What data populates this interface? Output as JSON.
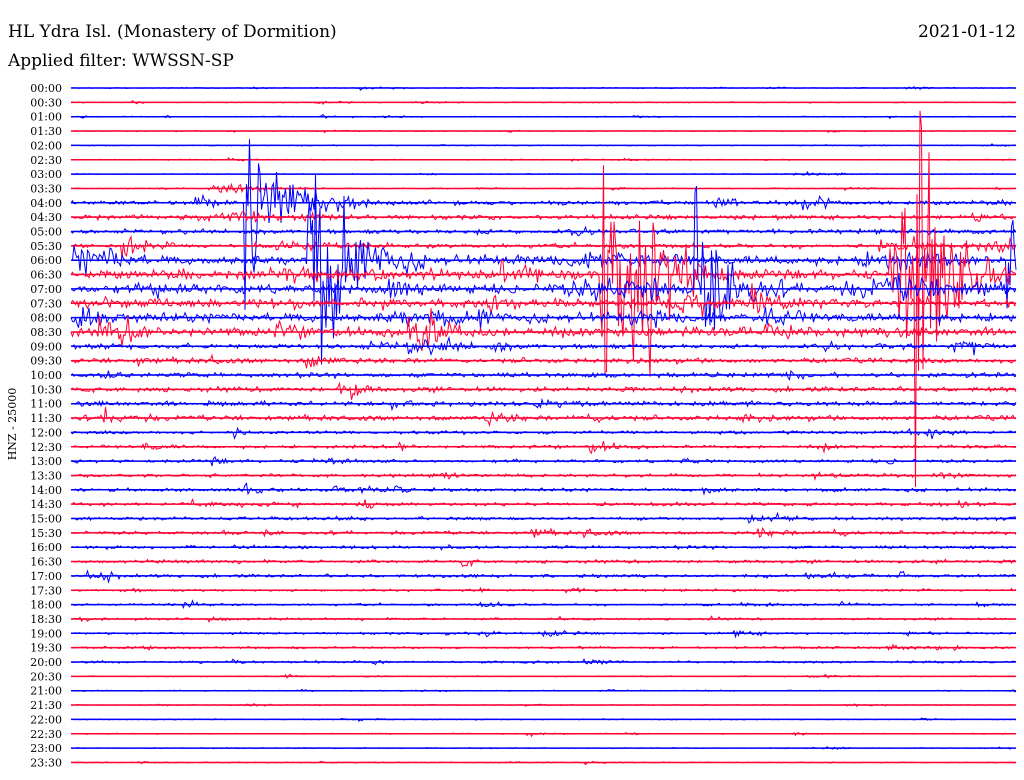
{
  "header": {
    "station": "HL Ydra Isl. (Monastery of Dormition)",
    "date": "2021-01-12",
    "filter": "Applied filter: WWSSN-SP"
  },
  "colors": {
    "even": "#0000ff",
    "odd": "#ff0033"
  },
  "chart_data": {
    "type": "line",
    "title": "HL Ydra Isl. (Monastery of Dormition)",
    "ylabel": "HNZ - 25000",
    "row_labels": [
      "00:00",
      "00:30",
      "01:00",
      "01:30",
      "02:00",
      "02:30",
      "03:00",
      "03:30",
      "04:00",
      "04:30",
      "05:00",
      "05:30",
      "06:00",
      "06:30",
      "07:00",
      "07:30",
      "08:00",
      "08:30",
      "09:00",
      "09:30",
      "10:00",
      "10:30",
      "11:00",
      "11:30",
      "12:00",
      "12:30",
      "13:00",
      "13:30",
      "14:00",
      "14:30",
      "15:00",
      "15:30",
      "16:00",
      "16:30",
      "17:00",
      "17:30",
      "18:00",
      "18:30",
      "19:00",
      "19:30",
      "20:00",
      "20:30",
      "21:00",
      "21:30",
      "22:00",
      "22:30",
      "23:00",
      "23:30"
    ],
    "row_minutes": 30,
    "events": [
      {
        "row": 8,
        "minute": 5.5,
        "peak_rows": 14,
        "duration_min": 4.0
      },
      {
        "row": 12,
        "minute": 7.5,
        "peak_rows": 20,
        "duration_min": 4.0
      },
      {
        "row": 17,
        "minute": 11.0,
        "peak_rows": 4,
        "duration_min": 2.5
      },
      {
        "row": 13,
        "minute": 16.8,
        "peak_rows": 22,
        "duration_min": 3.0
      },
      {
        "row": 13,
        "minute": 17.8,
        "peak_rows": 18,
        "duration_min": 3.0
      },
      {
        "row": 14,
        "minute": 19.8,
        "peak_rows": 18,
        "duration_min": 3.0
      },
      {
        "row": 13,
        "minute": 26.0,
        "peak_rows": 14,
        "duration_min": 3.5
      },
      {
        "row": 13,
        "minute": 26.8,
        "peak_rows": 22,
        "duration_min": 3.0
      },
      {
        "row": 12,
        "minute": 29.7,
        "peak_rows": 16,
        "duration_min": 2.5
      }
    ]
  }
}
